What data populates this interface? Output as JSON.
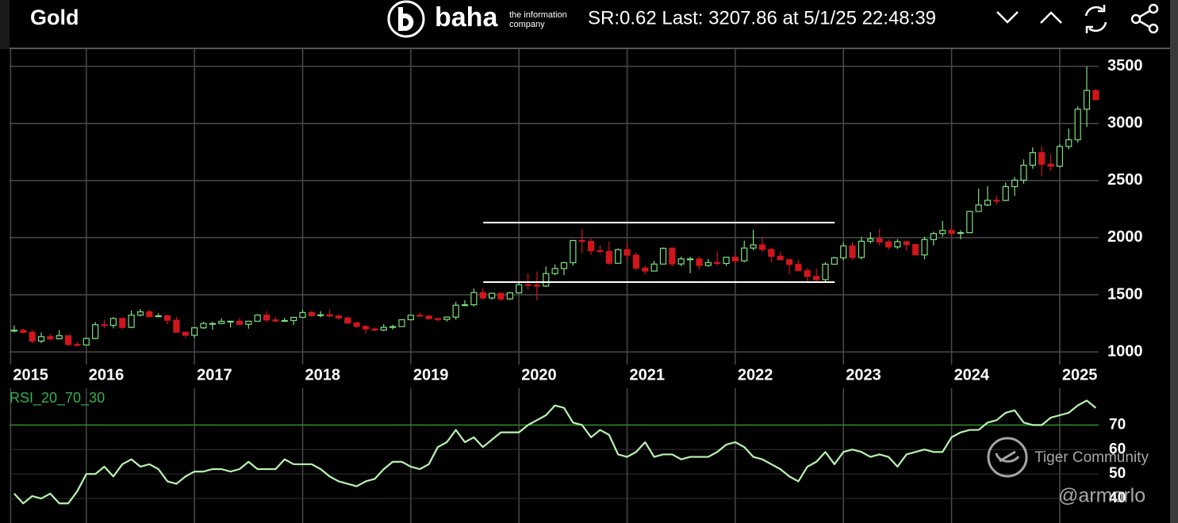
{
  "header": {
    "title": "Gold",
    "brand": "baha",
    "brand_tagline": [
      "the information",
      "company"
    ],
    "status": "SR:0.62 Last: 3207.86 at 5/1/25 22:48:39"
  },
  "watermark": {
    "name": "Tiger Community",
    "handle": "@armorlo"
  },
  "chart_data": [
    {
      "type": "candlestick",
      "x": [
        2015.3333,
        2015.4167,
        2015.5,
        2015.5833,
        2015.6667,
        2015.75,
        2015.8333,
        2015.9167,
        2016,
        2016.0833,
        2016.1667,
        2016.25,
        2016.3333,
        2016.4167,
        2016.5,
        2016.5833,
        2016.6667,
        2016.75,
        2016.8333,
        2016.9167,
        2017,
        2017.0833,
        2017.1667,
        2017.25,
        2017.3333,
        2017.4167,
        2017.5,
        2017.5833,
        2017.6667,
        2017.75,
        2017.8333,
        2017.9167,
        2018,
        2018.0833,
        2018.1667,
        2018.25,
        2018.3333,
        2018.4167,
        2018.5,
        2018.5833,
        2018.6667,
        2018.75,
        2018.8333,
        2018.9167,
        2019,
        2019.0833,
        2019.1667,
        2019.25,
        2019.3333,
        2019.4167,
        2019.5,
        2019.5833,
        2019.6667,
        2019.75,
        2019.8333,
        2019.9167,
        2020,
        2020.0833,
        2020.1667,
        2020.25,
        2020.3333,
        2020.4167,
        2020.5,
        2020.5833,
        2020.6667,
        2020.75,
        2020.8333,
        2020.9167,
        2021,
        2021.0833,
        2021.1667,
        2021.25,
        2021.3333,
        2021.4167,
        2021.5,
        2021.5833,
        2021.6667,
        2021.75,
        2021.8333,
        2021.9167,
        2022,
        2022.0833,
        2022.1667,
        2022.25,
        2022.3333,
        2022.4167,
        2022.5,
        2022.5833,
        2022.6667,
        2022.75,
        2022.8333,
        2022.9167,
        2023,
        2023.0833,
        2023.1667,
        2023.25,
        2023.3333,
        2023.4167,
        2023.5,
        2023.5833,
        2023.6667,
        2023.75,
        2023.8333,
        2023.9167,
        2024,
        2024.0833,
        2024.1667,
        2024.25,
        2024.3333,
        2024.4167,
        2024.5,
        2024.5833,
        2024.6667,
        2024.75,
        2024.8333,
        2024.9167,
        2025,
        2025.0833,
        2025.1667,
        2025.25,
        2025.3333
      ],
      "open": [
        1184,
        1190,
        1172,
        1095,
        1134,
        1115,
        1142,
        1065,
        1061,
        1118,
        1238,
        1233,
        1293,
        1215,
        1322,
        1351,
        1309,
        1316,
        1277,
        1173,
        1146,
        1211,
        1249,
        1249,
        1268,
        1269,
        1242,
        1269,
        1322,
        1280,
        1271,
        1275,
        1303,
        1345,
        1318,
        1325,
        1315,
        1298,
        1253,
        1224,
        1201,
        1192,
        1215,
        1222,
        1282,
        1321,
        1313,
        1292,
        1284,
        1305,
        1409,
        1413,
        1520,
        1472,
        1513,
        1464,
        1517,
        1589,
        1585,
        1577,
        1686,
        1730,
        1781,
        1975,
        1967,
        1886,
        1879,
        1776,
        1895,
        1847,
        1734,
        1708,
        1769,
        1907,
        1770,
        1814,
        1814,
        1757,
        1783,
        1774,
        1829,
        1797,
        1909,
        1937,
        1897,
        1837,
        1807,
        1766,
        1711,
        1661,
        1633,
        1768,
        1824,
        1928,
        1827,
        1969,
        1990,
        1963,
        1919,
        1965,
        1940,
        1849,
        1983,
        2036,
        2063,
        2039,
        2044,
        2230,
        2286,
        2327,
        2326,
        2447,
        2503,
        2634,
        2744,
        2643,
        2625,
        2798,
        2857,
        3124,
        3288
      ],
      "high": [
        1232,
        1205,
        1191,
        1170,
        1157,
        1191,
        1142,
        1088,
        1127,
        1263,
        1282,
        1304,
        1303,
        1362,
        1375,
        1367,
        1338,
        1326,
        1306,
        1177,
        1220,
        1264,
        1264,
        1295,
        1271,
        1296,
        1271,
        1331,
        1357,
        1306,
        1299,
        1307,
        1366,
        1361,
        1356,
        1369,
        1327,
        1309,
        1265,
        1237,
        1214,
        1243,
        1237,
        1285,
        1326,
        1346,
        1324,
        1299,
        1309,
        1439,
        1453,
        1555,
        1557,
        1518,
        1517,
        1525,
        1611,
        1689,
        1704,
        1747,
        1765,
        1789,
        1981,
        2075,
        1992,
        1933,
        1965,
        1906,
        1959,
        1871,
        1755,
        1798,
        1913,
        1917,
        1834,
        1833,
        1836,
        1814,
        1877,
        1831,
        1853,
        1974,
        2070,
        1998,
        1910,
        1879,
        1814,
        1807,
        1735,
        1729,
        1786,
        1833,
        1959,
        1959,
        2009,
        2048,
        2079,
        1985,
        1987,
        1949,
        1947,
        2009,
        2052,
        2146,
        2088,
        2065,
        2236,
        2431,
        2450,
        2368,
        2483,
        2531,
        2685,
        2790,
        2801,
        2726,
        2817,
        2956,
        3148,
        3500,
        3300
      ],
      "low": [
        1170,
        1162,
        1077,
        1077,
        1098,
        1111,
        1053,
        1046,
        1062,
        1111,
        1208,
        1207,
        1200,
        1208,
        1311,
        1302,
        1303,
        1241,
        1171,
        1123,
        1122,
        1201,
        1194,
        1243,
        1214,
        1236,
        1204,
        1267,
        1261,
        1261,
        1263,
        1236,
        1303,
        1307,
        1303,
        1302,
        1282,
        1250,
        1211,
        1160,
        1180,
        1182,
        1196,
        1221,
        1276,
        1310,
        1281,
        1266,
        1266,
        1283,
        1400,
        1400,
        1459,
        1458,
        1445,
        1455,
        1517,
        1548,
        1451,
        1568,
        1670,
        1671,
        1757,
        1863,
        1849,
        1860,
        1764,
        1775,
        1802,
        1717,
        1677,
        1705,
        1767,
        1750,
        1750,
        1688,
        1722,
        1746,
        1759,
        1753,
        1780,
        1786,
        1890,
        1872,
        1786,
        1805,
        1681,
        1709,
        1615,
        1617,
        1616,
        1765,
        1804,
        1804,
        1810,
        1949,
        1932,
        1893,
        1903,
        1884,
        1848,
        1810,
        1932,
        2009,
        2002,
        1985,
        2039,
        2229,
        2277,
        2287,
        2319,
        2365,
        2472,
        2604,
        2536,
        2583,
        2614,
        2772,
        2832,
        2970,
        3202
      ],
      "close": [
        1190,
        1172,
        1095,
        1134,
        1115,
        1142,
        1065,
        1061,
        1118,
        1238,
        1233,
        1293,
        1215,
        1322,
        1351,
        1309,
        1316,
        1277,
        1173,
        1146,
        1211,
        1249,
        1249,
        1268,
        1269,
        1242,
        1269,
        1322,
        1280,
        1271,
        1275,
        1303,
        1345,
        1318,
        1325,
        1315,
        1298,
        1253,
        1224,
        1201,
        1192,
        1215,
        1222,
        1282,
        1321,
        1313,
        1292,
        1284,
        1305,
        1409,
        1413,
        1520,
        1472,
        1513,
        1464,
        1517,
        1589,
        1585,
        1577,
        1686,
        1730,
        1781,
        1975,
        1967,
        1886,
        1879,
        1776,
        1895,
        1847,
        1734,
        1708,
        1769,
        1907,
        1770,
        1814,
        1814,
        1757,
        1783,
        1774,
        1829,
        1797,
        1909,
        1937,
        1897,
        1837,
        1807,
        1766,
        1711,
        1661,
        1633,
        1768,
        1824,
        1928,
        1827,
        1969,
        1990,
        1963,
        1919,
        1965,
        1940,
        1849,
        1983,
        2036,
        2063,
        2039,
        2044,
        2230,
        2286,
        2327,
        2326,
        2447,
        2503,
        2634,
        2744,
        2643,
        2625,
        2798,
        2857,
        3124,
        3288,
        3207.86
      ],
      "up_color": "#7ee07e",
      "down_color": "#d0161c",
      "xlim": [
        2015.29,
        2025.36
      ],
      "xticks": [
        {
          "value": 2015.3,
          "label": "2015"
        },
        2016,
        2017,
        2018,
        2019,
        2020,
        2021,
        2022,
        2023,
        2024,
        2025
      ],
      "ylim": [
        890,
        3650
      ],
      "yticks": [
        1000,
        1500,
        2000,
        2500,
        3000,
        3500
      ],
      "grid": true,
      "lines": [
        {
          "y": 2132,
          "x": [
            2019.67,
            2022.92
          ],
          "color": "#ffffff"
        },
        {
          "y": 1611,
          "x": [
            2019.67,
            2022.92
          ],
          "color": "#ffffff"
        }
      ]
    },
    {
      "type": "line",
      "name": "RSI_20_70_30",
      "color": "#b8f5b0",
      "values": [
        42,
        38,
        41,
        40,
        42,
        38,
        38,
        43,
        50,
        50,
        53,
        49,
        54,
        56,
        53,
        54,
        52,
        47,
        46,
        49,
        51,
        51,
        52,
        52,
        51,
        52,
        55,
        52,
        52,
        52,
        56,
        54,
        54,
        54,
        52,
        49,
        47,
        46,
        45,
        47,
        48,
        52,
        55,
        55,
        53,
        52,
        54,
        61,
        63,
        68,
        63,
        65,
        61,
        64,
        67,
        67,
        67,
        70,
        72,
        74,
        78,
        77,
        71,
        70,
        65,
        68,
        66,
        58,
        57,
        59,
        63,
        57,
        58,
        58,
        56,
        57,
        57,
        57,
        59,
        62,
        63,
        61,
        57,
        56,
        54,
        52,
        49,
        47,
        53,
        55,
        59,
        54,
        59,
        60,
        59,
        57,
        58,
        57,
        53,
        58,
        59,
        60,
        59,
        59,
        65,
        67,
        68,
        68,
        71,
        72,
        75,
        76,
        71,
        70,
        70,
        73,
        74,
        75,
        78,
        80,
        77
      ],
      "ylim": [
        30,
        85
      ],
      "yticks": [
        40,
        50,
        60,
        70
      ],
      "grid": true,
      "threshold": 70,
      "threshold_color": "#2e8b2e",
      "label_color": "#2fb34a"
    }
  ]
}
